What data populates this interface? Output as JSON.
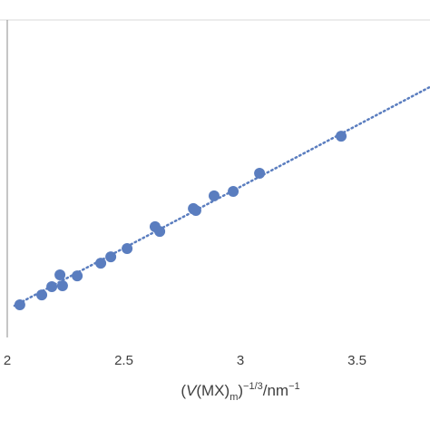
{
  "chart_data": {
    "type": "scatter",
    "x": [
      2.054,
      2.148,
      2.191,
      2.226,
      2.237,
      2.3,
      2.401,
      2.444,
      2.514,
      2.634,
      2.654,
      2.798,
      2.809,
      2.887,
      2.969,
      3.082,
      3.432
    ],
    "values": [
      10.3,
      13.4,
      16.0,
      19.7,
      16.3,
      19.4,
      23.4,
      25.4,
      28.0,
      34.9,
      33.4,
      40.6,
      40.0,
      44.6,
      46.0,
      51.7,
      63.4
    ],
    "color": "#5a7dbf",
    "trendline": {
      "x": [
        2.031,
        3.813
      ],
      "values": [
        10.0,
        78.9
      ],
      "color": "#5a7dbf"
    },
    "xlim": [
      2,
      3.813
    ],
    "ylim": [
      0,
      100
    ],
    "xticks": [
      2,
      2.5,
      3,
      3.5
    ],
    "xlabel": [
      "(",
      "V",
      "(MX)",
      "m",
      ")",
      "−1/3",
      "/nm",
      "−1"
    ]
  }
}
